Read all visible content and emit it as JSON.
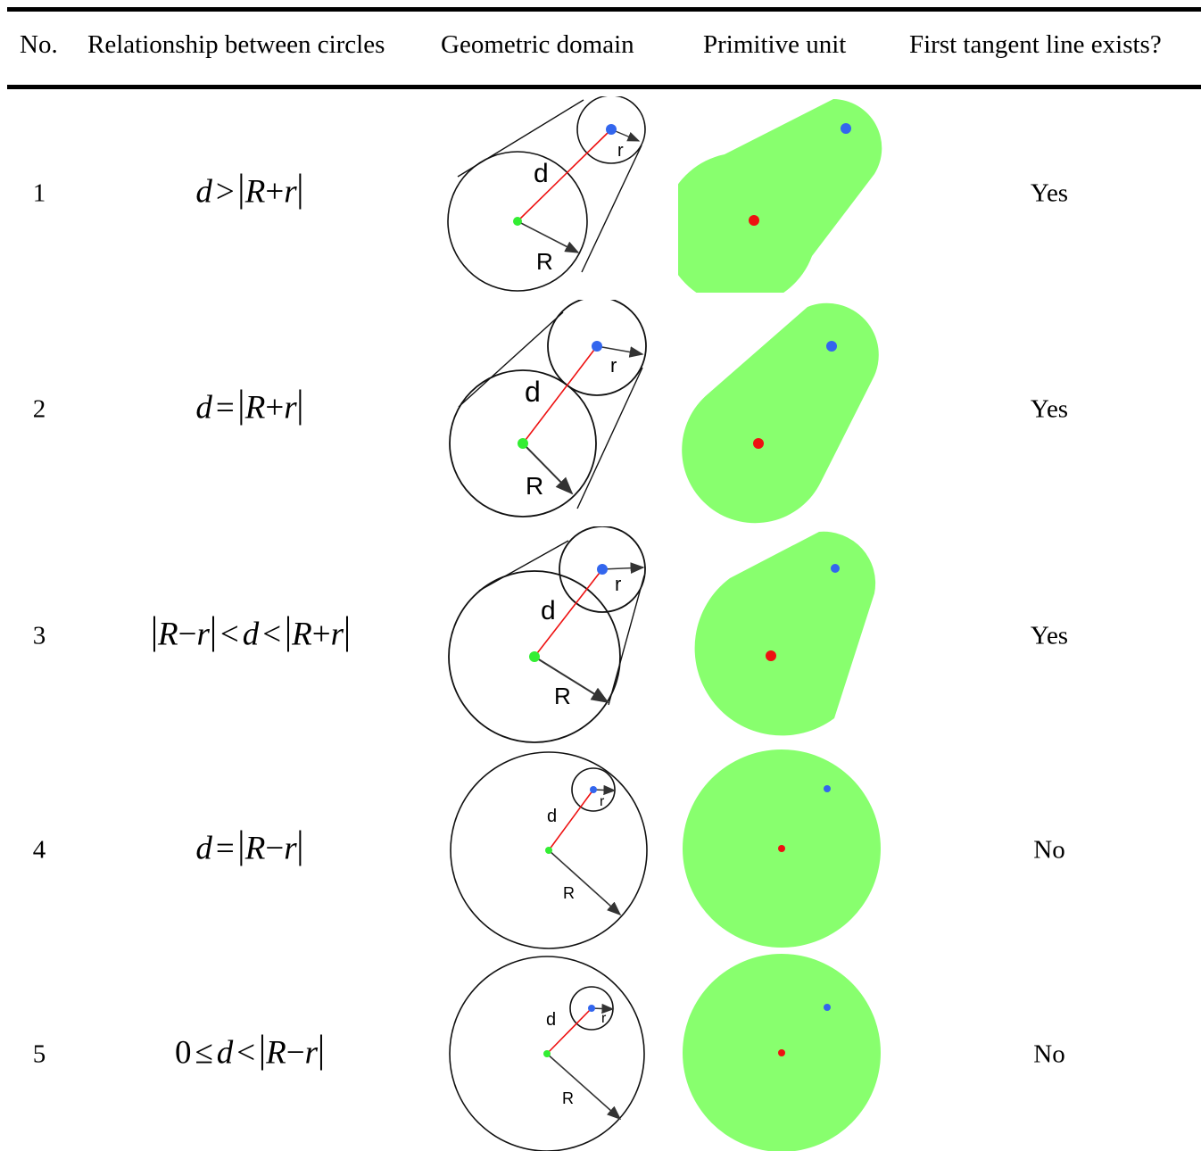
{
  "headers": {
    "no": "No.",
    "relationship": "Relationship between circles",
    "domain": "Geometric domain",
    "unit": "Primitive unit",
    "tangent": "First tangent line exists?"
  },
  "rows": [
    {
      "no": "1",
      "tangent": "Yes",
      "label_d": "d",
      "label_R": "R",
      "label_r": "r"
    },
    {
      "no": "2",
      "tangent": "Yes",
      "label_d": "d",
      "label_R": "R",
      "label_r": "r"
    },
    {
      "no": "3",
      "tangent": "Yes",
      "label_d": "d",
      "label_R": "R",
      "label_r": "r"
    },
    {
      "no": "4",
      "tangent": "No",
      "label_d": "d",
      "label_R": "R",
      "label_r": "r"
    },
    {
      "no": "5",
      "tangent": "No",
      "label_d": "d",
      "label_R": "R",
      "label_r": "r"
    }
  ],
  "formulas": {
    "d": "d",
    "R": "R",
    "r": "r",
    "gt": ">",
    "eq": "=",
    "lt": "<",
    "le": "≤",
    "plus": "+",
    "minus": "−",
    "zero": "0"
  },
  "colors": {
    "unit_fill": "#88ff6e",
    "center_large": "#33ee33",
    "center_small": "#3366ee",
    "primitive_large_center": "#ee1111",
    "distance_line": "#ee1111"
  }
}
